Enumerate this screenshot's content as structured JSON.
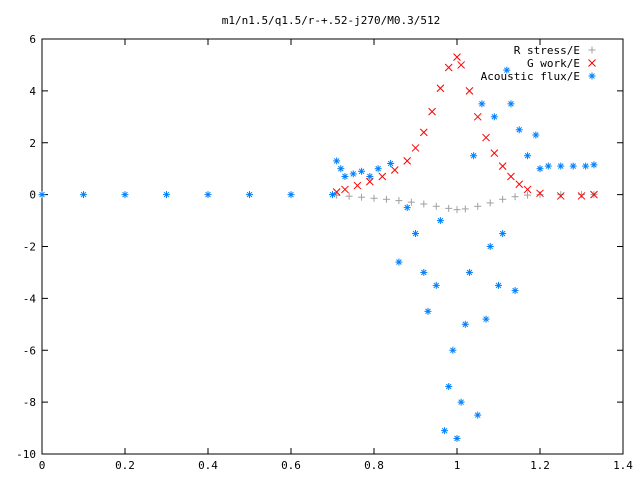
{
  "chart_data": {
    "type": "scatter",
    "title": "m1/n1.5/q1.5/r-+.52-j270/M0.3/512",
    "xlabel": "",
    "ylabel": "",
    "xlim": [
      0,
      1.4
    ],
    "ylim": [
      -10,
      6
    ],
    "xticks": [
      "0",
      "0.2",
      "0.4",
      "0.6",
      "0.8",
      "1",
      "1.2",
      "1.4"
    ],
    "yticks": [
      "-10",
      "-8",
      "-6",
      "-4",
      "-2",
      "0",
      "2",
      "4",
      "6"
    ],
    "grid": false,
    "legend": "top-right",
    "series": [
      {
        "name": "R stress/E",
        "marker": "plus",
        "color": "#a0a0a0",
        "points": [
          [
            0.71,
            -0.02
          ],
          [
            0.74,
            -0.06
          ],
          [
            0.77,
            -0.1
          ],
          [
            0.8,
            -0.14
          ],
          [
            0.83,
            -0.18
          ],
          [
            0.86,
            -0.23
          ],
          [
            0.89,
            -0.29
          ],
          [
            0.92,
            -0.36
          ],
          [
            0.95,
            -0.45
          ],
          [
            0.98,
            -0.53
          ],
          [
            1.0,
            -0.58
          ],
          [
            1.02,
            -0.55
          ],
          [
            1.05,
            -0.45
          ],
          [
            1.08,
            -0.32
          ],
          [
            1.11,
            -0.18
          ],
          [
            1.14,
            -0.08
          ],
          [
            1.17,
            -0.02
          ],
          [
            1.2,
            0.0
          ],
          [
            1.25,
            0.0
          ],
          [
            1.3,
            0.0
          ],
          [
            1.33,
            0.0
          ]
        ]
      },
      {
        "name": "G work/E",
        "marker": "cross",
        "color": "#ff0000",
        "points": [
          [
            0.71,
            0.1
          ],
          [
            0.73,
            0.2
          ],
          [
            0.76,
            0.35
          ],
          [
            0.79,
            0.5
          ],
          [
            0.82,
            0.7
          ],
          [
            0.85,
            0.95
          ],
          [
            0.88,
            1.3
          ],
          [
            0.9,
            1.8
          ],
          [
            0.92,
            2.4
          ],
          [
            0.94,
            3.2
          ],
          [
            0.96,
            4.1
          ],
          [
            0.98,
            4.9
          ],
          [
            1.0,
            5.3
          ],
          [
            1.01,
            5.0
          ],
          [
            1.03,
            4.0
          ],
          [
            1.05,
            3.0
          ],
          [
            1.07,
            2.2
          ],
          [
            1.09,
            1.6
          ],
          [
            1.11,
            1.1
          ],
          [
            1.13,
            0.7
          ],
          [
            1.15,
            0.4
          ],
          [
            1.17,
            0.2
          ],
          [
            1.2,
            0.05
          ],
          [
            1.25,
            -0.05
          ],
          [
            1.3,
            -0.05
          ],
          [
            1.33,
            0.0
          ]
        ]
      },
      {
        "name": "Acoustic flux/E",
        "marker": "star",
        "color": "#0080ff",
        "points": [
          [
            0.0,
            0.0
          ],
          [
            0.1,
            0.0
          ],
          [
            0.2,
            0.0
          ],
          [
            0.3,
            0.0
          ],
          [
            0.4,
            0.0
          ],
          [
            0.5,
            0.0
          ],
          [
            0.6,
            0.0
          ],
          [
            0.7,
            0.0
          ],
          [
            0.71,
            1.3
          ],
          [
            0.72,
            1.0
          ],
          [
            0.73,
            0.7
          ],
          [
            0.75,
            0.8
          ],
          [
            0.77,
            0.9
          ],
          [
            0.79,
            0.7
          ],
          [
            0.81,
            1.0
          ],
          [
            0.84,
            1.2
          ],
          [
            0.86,
            -2.6
          ],
          [
            0.88,
            -0.5
          ],
          [
            0.9,
            -1.5
          ],
          [
            0.92,
            -3.0
          ],
          [
            0.93,
            -4.5
          ],
          [
            0.95,
            -3.5
          ],
          [
            0.96,
            -1.0
          ],
          [
            0.97,
            -9.1
          ],
          [
            0.98,
            -7.4
          ],
          [
            0.99,
            -6.0
          ],
          [
            1.0,
            -9.4
          ],
          [
            1.01,
            -8.0
          ],
          [
            1.02,
            -5.0
          ],
          [
            1.03,
            -3.0
          ],
          [
            1.04,
            1.5
          ],
          [
            1.05,
            -8.5
          ],
          [
            1.06,
            3.5
          ],
          [
            1.07,
            -4.8
          ],
          [
            1.08,
            -2.0
          ],
          [
            1.09,
            3.0
          ],
          [
            1.1,
            -3.5
          ],
          [
            1.11,
            -1.5
          ],
          [
            1.12,
            4.8
          ],
          [
            1.13,
            3.5
          ],
          [
            1.14,
            -3.7
          ],
          [
            1.15,
            2.5
          ],
          [
            1.17,
            1.5
          ],
          [
            1.19,
            2.3
          ],
          [
            1.2,
            1.0
          ],
          [
            1.22,
            1.1
          ],
          [
            1.25,
            1.1
          ],
          [
            1.28,
            1.1
          ],
          [
            1.31,
            1.1
          ],
          [
            1.33,
            1.15
          ]
        ]
      }
    ]
  }
}
